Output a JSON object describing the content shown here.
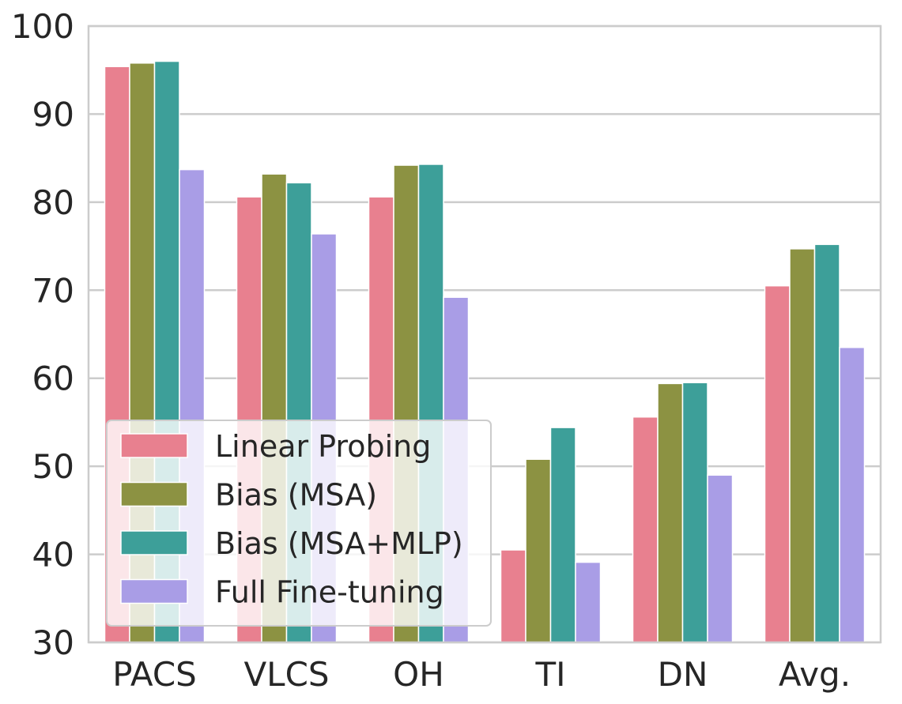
{
  "chart_data": {
    "type": "bar",
    "title": "",
    "xlabel": "",
    "ylabel": "",
    "ylim": [
      30,
      100
    ],
    "yticks": [
      30,
      40,
      50,
      60,
      70,
      80,
      90,
      100
    ],
    "grid": "horizontal",
    "legend_position": "lower-left",
    "categories": [
      "PACS",
      "VLCS",
      "OH",
      "TI",
      "DN",
      "Avg."
    ],
    "series": [
      {
        "name": "Linear Probing",
        "color": "#e8808f",
        "values": [
          95.4,
          80.6,
          80.6,
          40.5,
          55.6,
          70.5
        ]
      },
      {
        "name": "Bias (MSA)",
        "color": "#8c9242",
        "values": [
          95.8,
          83.2,
          84.2,
          50.8,
          59.4,
          74.7
        ]
      },
      {
        "name": "Bias (MSA+MLP)",
        "color": "#3d9f99",
        "values": [
          96.0,
          82.2,
          84.3,
          54.4,
          59.5,
          75.2
        ]
      },
      {
        "name": "Full Fine-tuning",
        "color": "#a99de6",
        "values": [
          83.7,
          76.4,
          69.2,
          39.1,
          49.0,
          63.5
        ]
      }
    ]
  }
}
